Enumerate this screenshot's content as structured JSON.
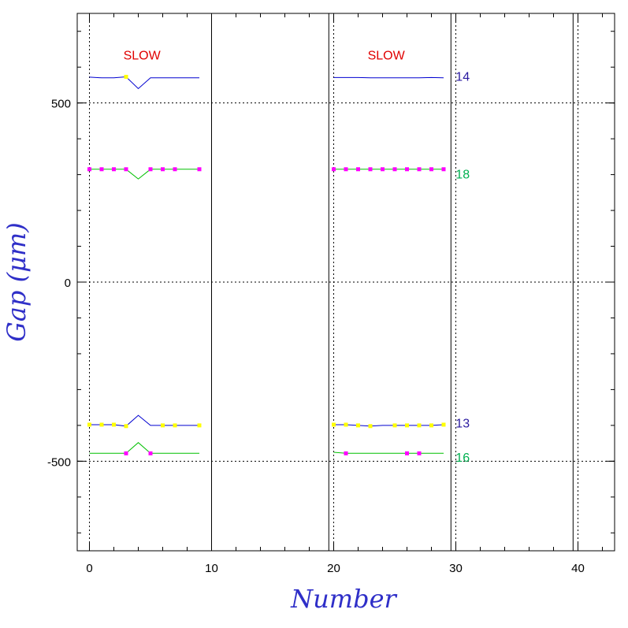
{
  "chart_data": {
    "type": "line",
    "title": "",
    "xlabel": "Number",
    "ylabel": "Gap (μm)",
    "xlim": [
      -1,
      43
    ],
    "ylim": [
      -750,
      750
    ],
    "x_ticks": [
      0,
      10,
      20,
      30,
      40
    ],
    "y_ticks": [
      -500,
      0,
      500
    ],
    "x_minor_step": 2,
    "y_minor_step": 100,
    "grid": {
      "dotted_vertical": [
        0,
        20,
        30,
        40
      ],
      "dotted_horizontal": [
        -500,
        0,
        500
      ],
      "solid_vertical": [
        10,
        19.6,
        29.6,
        39.6
      ]
    },
    "annotations": [
      {
        "text": "SLOW",
        "x": 4.3,
        "y": 635,
        "color": "#e00000"
      },
      {
        "text": "SLOW",
        "x": 24.3,
        "y": 635,
        "color": "#e00000"
      }
    ],
    "series": [
      {
        "label": "14",
        "label_at": [
          29.6,
          575
        ],
        "color": "#0000d0",
        "label_color": "#2a1aa0",
        "marker_color": "#ffff00",
        "segments": [
          {
            "x": [
              0,
              1,
              2,
              3,
              4,
              5,
              6,
              7,
              8,
              9
            ],
            "y": [
              572,
              570,
              570,
              573,
              540,
              570,
              570,
              570,
              570,
              570
            ],
            "markers": [
              3
            ]
          },
          {
            "x": [
              20,
              21,
              22,
              23,
              24,
              25,
              26,
              27,
              28,
              29
            ],
            "y": [
              571,
              571,
              571,
              570,
              570,
              570,
              570,
              570,
              571,
              570
            ],
            "markers": []
          }
        ]
      },
      {
        "label": "18",
        "label_at": [
          29.6,
          302
        ],
        "color": "#00c000",
        "label_color": "#00b050",
        "marker_color": "#ff00ff",
        "segments": [
          {
            "x": [
              0,
              1,
              2,
              3,
              4,
              5,
              6,
              7,
              8,
              9
            ],
            "y": [
              315,
              315,
              315,
              315,
              288,
              315,
              315,
              315,
              315,
              315
            ],
            "markers": [
              0,
              1,
              2,
              3,
              5,
              6,
              7,
              9
            ]
          },
          {
            "x": [
              20,
              21,
              22,
              23,
              24,
              25,
              26,
              27,
              28,
              29
            ],
            "y": [
              315,
              315,
              315,
              315,
              315,
              315,
              315,
              315,
              315,
              315
            ],
            "markers": [
              0,
              1,
              2,
              3,
              4,
              5,
              6,
              7,
              8,
              9
            ]
          }
        ]
      },
      {
        "label": "13",
        "label_at": [
          29.6,
          -393
        ],
        "color": "#0000d0",
        "label_color": "#2a1aa0",
        "marker_color": "#ffff00",
        "segments": [
          {
            "x": [
              0,
              1,
              2,
              3,
              4,
              5,
              6,
              7,
              8,
              9
            ],
            "y": [
              -398,
              -398,
              -398,
              -402,
              -372,
              -400,
              -400,
              -400,
              -400,
              -400
            ],
            "markers": [
              0,
              1,
              2,
              3,
              6,
              7,
              9
            ]
          },
          {
            "x": [
              20,
              21,
              22,
              23,
              24,
              25,
              26,
              27,
              28,
              29
            ],
            "y": [
              -398,
              -398,
              -400,
              -402,
              -400,
              -400,
              -400,
              -400,
              -400,
              -398
            ],
            "markers": [
              0,
              1,
              2,
              3,
              5,
              6,
              7,
              8,
              9
            ]
          }
        ]
      },
      {
        "label": "16",
        "label_at": [
          29.6,
          -488
        ],
        "color": "#00c000",
        "label_color": "#00b050",
        "marker_color": "#ff00ff",
        "segments": [
          {
            "x": [
              0,
              1,
              2,
              3,
              4,
              5,
              6,
              7,
              8,
              9
            ],
            "y": [
              -478,
              -478,
              -478,
              -478,
              -448,
              -478,
              -478,
              -478,
              -478,
              -478
            ],
            "markers": [
              3,
              5
            ]
          },
          {
            "x": [
              20,
              21,
              22,
              23,
              24,
              25,
              26,
              27,
              28,
              29
            ],
            "y": [
              -475,
              -478,
              -478,
              -478,
              -478,
              -478,
              -478,
              -478,
              -478,
              -478
            ],
            "markers": [
              1,
              6,
              7
            ]
          }
        ]
      }
    ]
  }
}
